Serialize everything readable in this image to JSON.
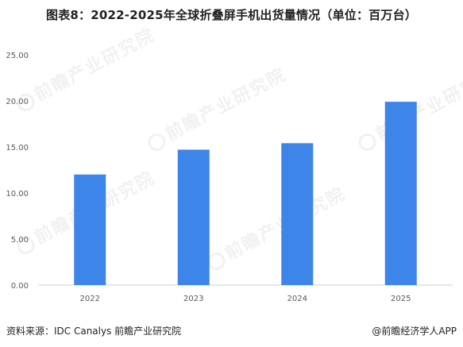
{
  "title": "图表8：2022-2025年全球折叠屏手机出货量情况（单位：百万台）",
  "footer": {
    "source": "资料来源：IDC Canalys  前瞻产业研究院",
    "credit": "@前瞻经济学人APP"
  },
  "watermark": {
    "text": "前瞻产业研究院"
  },
  "colors": {
    "bar": "#3d85e8",
    "axis": "#d0d0d0",
    "text": "#595959"
  },
  "chart_data": {
    "type": "bar",
    "categories": [
      "2022",
      "2023",
      "2024",
      "2025"
    ],
    "values": [
      12.0,
      14.7,
      15.4,
      19.9
    ],
    "ylim": [
      0,
      25
    ],
    "yticks": [
      0,
      5,
      10,
      15,
      20,
      25
    ],
    "ytick_labels": [
      "0.00",
      "5.00",
      "10.00",
      "15.00",
      "20.00",
      "25.00"
    ],
    "title": "图表8：2022-2025年全球折叠屏手机出货量情况（单位：百万台）",
    "xlabel": "",
    "ylabel": "",
    "grid": false,
    "legend": "none"
  }
}
